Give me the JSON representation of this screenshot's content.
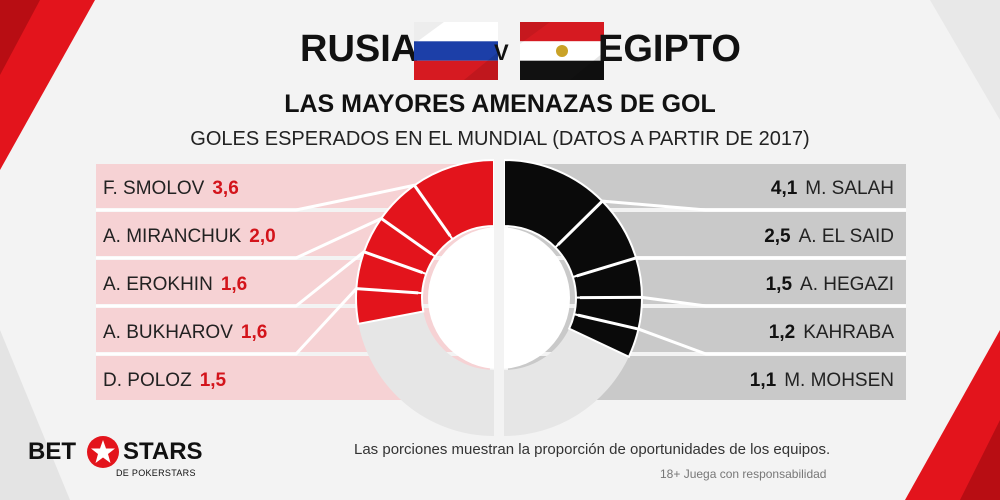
{
  "header": {
    "team_left": "RUSIA",
    "vs": "V",
    "team_right": "EGIPTO",
    "subtitle": "LAS MAYORES AMENAZAS DE GOL",
    "caption": "GOLES ESPERADOS EN EL MUNDIAL (DATOS A PARTIR DE 2017)"
  },
  "footer": {
    "note": "Las porciones muestran la proporción de oportunidades de los equipos.",
    "legal": "18+ Juega con responsabilidad",
    "logo_bet": "BET",
    "logo_stars": "STARS",
    "logo_sub": "DE POKERSTARS"
  },
  "colors": {
    "russia_band": "#f6d2d4",
    "russia_slice": "#e3141c",
    "egypt_band": "#c9c9c9",
    "egypt_slice": "#0a0a0a",
    "remainder": "#e6e6e6",
    "value_red": "#d3141b"
  },
  "chart_data": {
    "type": "pie",
    "variant": "split-donut",
    "title": "LAS MAYORES AMENAZAS DE GOL",
    "subtitle": "GOLES ESPERADOS EN EL MUNDIAL (DATOS A PARTIR DE 2017)",
    "series": [
      {
        "name": "RUSIA",
        "players": [
          {
            "name": "F. SMOLOV",
            "value": 3.6,
            "label": "3,6"
          },
          {
            "name": "A. MIRANCHUK",
            "value": 2.0,
            "label": "2,0"
          },
          {
            "name": "A. EROKHIN",
            "value": 1.6,
            "label": "1,6"
          },
          {
            "name": "A. BUKHAROV",
            "value": 1.6,
            "label": "1,6"
          },
          {
            "name": "D. POLOZ",
            "value": 1.5,
            "label": "1,5"
          }
        ],
        "share_of_half": 0.56
      },
      {
        "name": "EGIPTO",
        "players": [
          {
            "name": "M. SALAH",
            "value": 4.1,
            "label": "4,1"
          },
          {
            "name": "A. EL SAID",
            "value": 2.5,
            "label": "2,5"
          },
          {
            "name": "A. HEGAZI",
            "value": 1.5,
            "label": "1,5"
          },
          {
            "name": "KAHRABA",
            "value": 1.2,
            "label": "1,2"
          },
          {
            "name": "M. MOHSEN",
            "value": 1.1,
            "label": "1,1"
          }
        ],
        "share_of_half": 0.64
      }
    ]
  }
}
